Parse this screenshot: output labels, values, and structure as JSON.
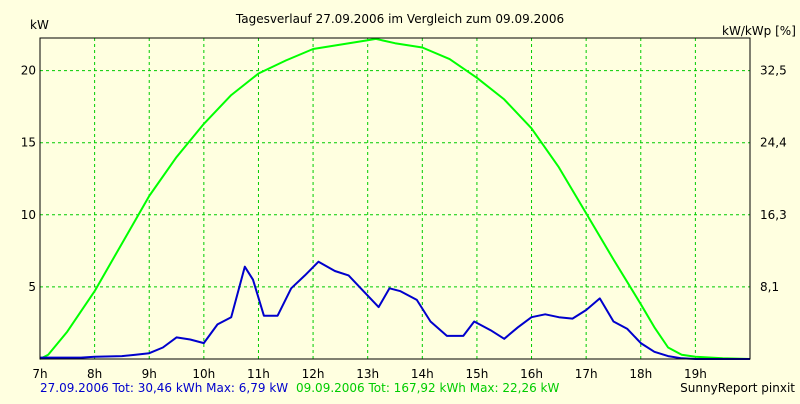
{
  "chart_data": {
    "type": "line",
    "title": "Tagesverlauf 27.09.2006 im Vergleich zum 09.09.2006",
    "ylabel_left": "kW",
    "ylabel_right": "kW/kWp [%]",
    "x_ticks": [
      "7h",
      "8h",
      "9h",
      "10h",
      "11h",
      "12h",
      "13h",
      "14h",
      "15h",
      "16h",
      "17h",
      "18h",
      "19h"
    ],
    "x_range": [
      7,
      20
    ],
    "y_left_ticks": [
      5,
      10,
      15,
      20
    ],
    "y_left_tick_labels": [
      "5",
      "10",
      "15",
      "20"
    ],
    "y_right_tick_labels": [
      "8,1",
      "16,3",
      "24,4",
      "32,5"
    ],
    "ylim": [
      0,
      22.26
    ],
    "grid": true,
    "series": [
      {
        "color": "#0000cc",
        "x": [
          7.0,
          7.75,
          8.0,
          8.5,
          8.75,
          9.0,
          9.25,
          9.5,
          9.75,
          10.0,
          10.25,
          10.5,
          10.75,
          10.9,
          11.1,
          11.35,
          11.6,
          11.85,
          12.1,
          12.4,
          12.65,
          12.9,
          13.2,
          13.4,
          13.6,
          13.9,
          14.15,
          14.45,
          14.75,
          14.95,
          15.25,
          15.5,
          15.75,
          16.0,
          16.25,
          16.5,
          16.75,
          17.0,
          17.25,
          17.5,
          17.75,
          18.0,
          18.25,
          18.5,
          18.75,
          19.0,
          19.5,
          20.0
        ],
        "y": [
          0.1,
          0.1,
          0.15,
          0.2,
          0.3,
          0.4,
          0.8,
          1.5,
          1.35,
          1.1,
          2.4,
          2.9,
          6.4,
          5.5,
          3.0,
          3.0,
          4.9,
          5.8,
          6.75,
          6.1,
          5.8,
          4.8,
          3.6,
          4.9,
          4.7,
          4.1,
          2.6,
          1.6,
          1.6,
          2.6,
          2.0,
          1.4,
          2.2,
          2.9,
          3.1,
          2.9,
          2.8,
          3.4,
          4.2,
          2.6,
          2.1,
          1.1,
          0.5,
          0.2,
          0.05,
          0.0,
          0.0,
          0.0
        ]
      },
      {
        "color": "#00ff00",
        "x": [
          7.0,
          7.15,
          7.5,
          8.0,
          8.5,
          9.0,
          9.5,
          10.0,
          10.5,
          11.0,
          11.5,
          12.0,
          12.5,
          13.0,
          13.15,
          13.5,
          14.0,
          14.5,
          15.0,
          15.5,
          16.0,
          16.5,
          17.0,
          17.5,
          18.0,
          18.25,
          18.5,
          18.75,
          19.0,
          19.5,
          20.0
        ],
        "y": [
          0.0,
          0.3,
          1.9,
          4.7,
          8.0,
          11.3,
          14.0,
          16.3,
          18.3,
          19.8,
          20.7,
          21.5,
          21.8,
          22.1,
          22.2,
          21.9,
          21.6,
          20.8,
          19.5,
          18.0,
          16.0,
          13.3,
          10.1,
          6.9,
          3.8,
          2.2,
          0.8,
          0.3,
          0.15,
          0.05,
          0.0
        ]
      }
    ],
    "legend": [
      {
        "text": "27.09.2006 Tot: 30,46 kWh Max: 6,79 kW",
        "color": "#0000cc"
      },
      {
        "text": "09.09.2006 Tot: 167,92 kWh Max: 22,26 kW",
        "color": "#00cc00"
      }
    ],
    "footer_right": "SunnyReport pinxit",
    "colors": {
      "background": "#ffffe0",
      "grid": "#00cc00",
      "frame": "#000000"
    }
  }
}
